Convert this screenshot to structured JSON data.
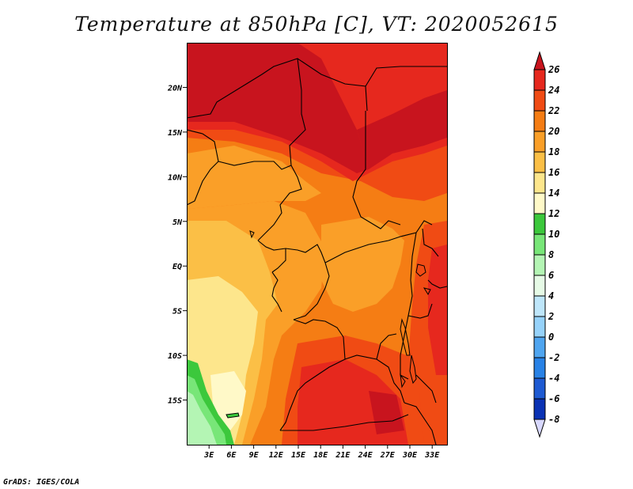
{
  "title": "Temperature at 850hPa [C], VT: 2020052615",
  "footer": "GrADS: IGES/COLA",
  "map": {
    "region": "Central Africa",
    "lon_range": [
      0,
      35
    ],
    "lat_range": [
      -20,
      25
    ],
    "lon_ticks": [
      3,
      6,
      9,
      12,
      15,
      18,
      21,
      24,
      27,
      30,
      33
    ],
    "lon_tick_labels": [
      "3E",
      "6E",
      "9E",
      "12E",
      "15E",
      "18E",
      "21E",
      "24E",
      "27E",
      "30E",
      "33E"
    ],
    "lat_ticks": [
      20,
      15,
      10,
      5,
      0,
      -5,
      -10,
      -15
    ],
    "lat_tick_labels": [
      "20N",
      "15N",
      "10N",
      "5N",
      "EQ",
      "5S",
      "10S",
      "15S"
    ]
  },
  "colorbar": {
    "levels": [
      "26",
      "24",
      "22",
      "20",
      "18",
      "16",
      "14",
      "12",
      "10",
      "8",
      "6",
      "4",
      "2",
      "0",
      "-2",
      "-4",
      "-6",
      "-8"
    ],
    "colors": {
      "above_26": "#c8141e",
      "24_26": "#e6281e",
      "22_24": "#f04b14",
      "20_22": "#f57d14",
      "18_20": "#fa9f28",
      "16_18": "#fbbf46",
      "14_16": "#fde68c",
      "12_14": "#fff9c8",
      "10_12": "#3cc83c",
      "8_10": "#78e678",
      "6_8": "#b4f5b4",
      "4_6": "#e6fae6",
      "2_4": "#bee6fa",
      "0_2": "#96d2fa",
      "-2_0": "#4fa5f0",
      "-4_-2": "#2882e6",
      "-6_-4": "#1e5ad2",
      "-8_-6": "#0a32b4",
      "below_-8": "#000a82",
      "below_end": "#d8d8ff"
    }
  }
}
